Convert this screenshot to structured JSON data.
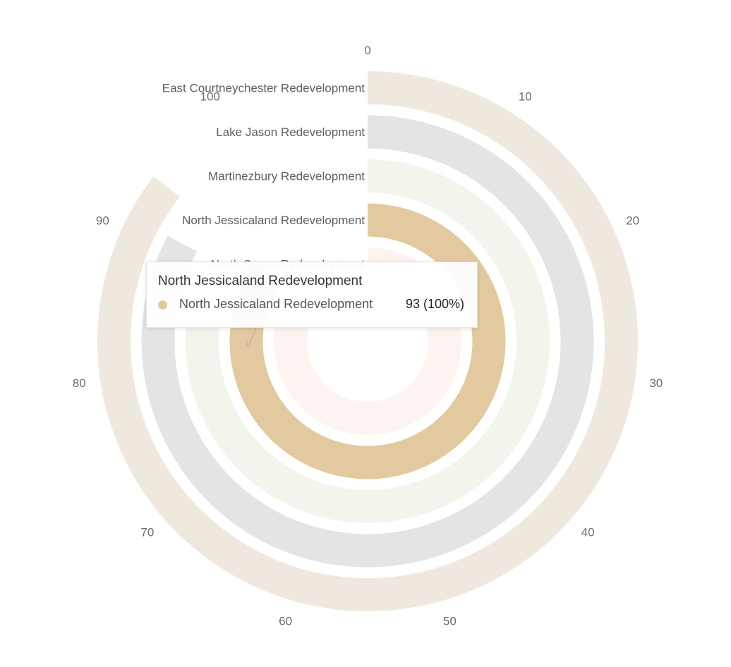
{
  "chart_data": {
    "type": "radial-bar",
    "categories": [
      "East Courtneychester Redevelopment",
      "Lake Jason Redevelopment",
      "Martinezbury Redevelopment",
      "North Jessicaland Redevelopment",
      "North Susan Redevelopment"
    ],
    "values": [
      94,
      91,
      89,
      93,
      87
    ],
    "colors": [
      "#efe8df",
      "#e4e5e2",
      "#f2f5ec",
      "#e2c9a0",
      "#fdf3f1"
    ],
    "angle_axis": {
      "min": 0,
      "max": 110,
      "ticks": [
        0,
        10,
        20,
        30,
        40,
        50,
        60,
        70,
        80,
        90,
        100
      ]
    },
    "highlighted": "North Jessicaland Redevelopment"
  },
  "tooltip": {
    "title": "North Jessicaland Redevelopment",
    "series_name": "North Jessicaland Redevelopment",
    "value_text": "93  (100%)",
    "dot_color": "#e2c9a0"
  }
}
